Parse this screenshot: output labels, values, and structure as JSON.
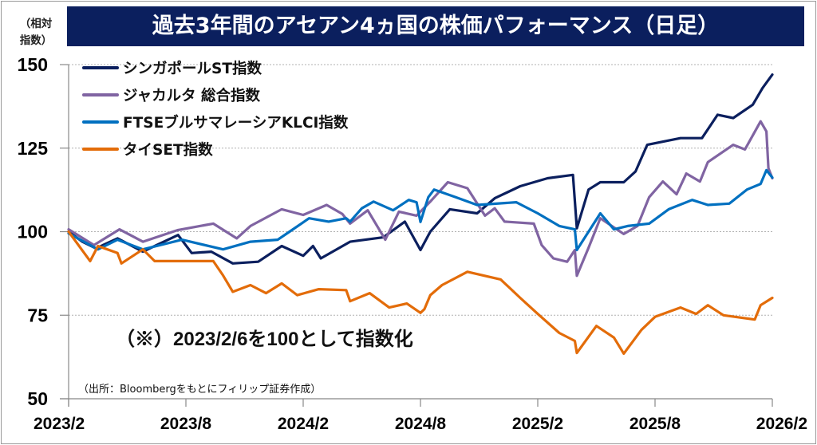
{
  "chart_data": {
    "type": "line",
    "title": "過去3年間のアセアン4ヵ国の株価パフォーマンス（日足）",
    "ylabel": "（相対指数）",
    "ylabel_lines": [
      "（相対",
      "指数）"
    ],
    "xlabel": "",
    "x_unit": "months since 2023/2",
    "xlim": [
      0,
      36
    ],
    "ylim": [
      50,
      150
    ],
    "yticks": [
      150,
      125,
      100,
      75,
      50
    ],
    "xticks": [
      {
        "x": 0,
        "label": "2023/2"
      },
      {
        "x": 6,
        "label": "2023/8"
      },
      {
        "x": 12,
        "label": "2024/2"
      },
      {
        "x": 18,
        "label": "2024/8"
      },
      {
        "x": 24,
        "label": "2025/2"
      },
      {
        "x": 30,
        "label": "2025/8"
      },
      {
        "x": 36,
        "label": "2026/2"
      }
    ],
    "grid": "horizontal dotted",
    "legend_position": "top-left",
    "note": "（※）2023/2/6を100として指数化",
    "source": "（出所：Bloombergをもとにフィリップ証券作成）",
    "series": [
      {
        "name": "シンガポールST指数",
        "color": "#0b1f5e",
        "points": [
          [
            0,
            100
          ],
          [
            0.7,
            97
          ],
          [
            1.4,
            95
          ],
          [
            2.5,
            98
          ],
          [
            3.8,
            94
          ],
          [
            4.5,
            96
          ],
          [
            5.6,
            99
          ],
          [
            6.3,
            93.6
          ],
          [
            7.3,
            94
          ],
          [
            8.4,
            90.5
          ],
          [
            9.7,
            91
          ],
          [
            10.9,
            95.7
          ],
          [
            12,
            92.8
          ],
          [
            12.5,
            95.7
          ],
          [
            12.9,
            92
          ],
          [
            14.4,
            97
          ],
          [
            16.1,
            98.3
          ],
          [
            17.2,
            103
          ],
          [
            18,
            94.5
          ],
          [
            18.5,
            100
          ],
          [
            19.5,
            106.7
          ],
          [
            20.9,
            105.5
          ],
          [
            21.8,
            110
          ],
          [
            23.1,
            113.6
          ],
          [
            24.5,
            116
          ],
          [
            25.8,
            117
          ],
          [
            26.0,
            101
          ],
          [
            26.6,
            112.6
          ],
          [
            27.2,
            114.8
          ],
          [
            28.4,
            114.8
          ],
          [
            29.0,
            118
          ],
          [
            29.6,
            126
          ],
          [
            31.3,
            128
          ],
          [
            32.4,
            128
          ],
          [
            33.2,
            135
          ],
          [
            34,
            134
          ],
          [
            35,
            138
          ],
          [
            35.5,
            143
          ],
          [
            36,
            147
          ]
        ]
      },
      {
        "name": "ジャカルタ 総合指数",
        "color": "#8064a2",
        "points": [
          [
            0,
            100.7
          ],
          [
            1.3,
            96
          ],
          [
            2.6,
            100.7
          ],
          [
            3.8,
            97
          ],
          [
            5.6,
            100.5
          ],
          [
            7.4,
            102.4
          ],
          [
            8.6,
            98
          ],
          [
            9.3,
            101.7
          ],
          [
            10.9,
            106.7
          ],
          [
            12,
            105
          ],
          [
            13.2,
            108
          ],
          [
            14,
            105.3
          ],
          [
            14.4,
            102.4
          ],
          [
            15.3,
            106.4
          ],
          [
            16.2,
            97.6
          ],
          [
            16.9,
            106
          ],
          [
            17.8,
            104.8
          ],
          [
            18.5,
            109
          ],
          [
            19.4,
            114.8
          ],
          [
            20.4,
            113
          ],
          [
            21.3,
            104.8
          ],
          [
            21.8,
            107
          ],
          [
            22.3,
            103
          ],
          [
            23.8,
            102.4
          ],
          [
            24.2,
            96
          ],
          [
            24.8,
            92
          ],
          [
            25.5,
            91
          ],
          [
            25.9,
            94.5
          ],
          [
            26,
            86.8
          ],
          [
            26.6,
            95.2
          ],
          [
            27.2,
            104
          ],
          [
            28.4,
            99.3
          ],
          [
            29.1,
            101.7
          ],
          [
            29.7,
            110.3
          ],
          [
            30.4,
            115
          ],
          [
            31.1,
            111.2
          ],
          [
            31.6,
            117.4
          ],
          [
            32.3,
            115
          ],
          [
            32.7,
            120.8
          ],
          [
            34,
            126
          ],
          [
            34.6,
            124.6
          ],
          [
            35.4,
            133
          ],
          [
            35.7,
            130
          ],
          [
            35.8,
            119
          ],
          [
            36,
            116
          ]
        ]
      },
      {
        "name": "FTSEブルサマレーシアKLCI指数",
        "color": "#0070c0",
        "points": [
          [
            0,
            99.5
          ],
          [
            1.5,
            94.7
          ],
          [
            2.5,
            97.6
          ],
          [
            3.8,
            94.7
          ],
          [
            5.8,
            97.6
          ],
          [
            7.9,
            94.7
          ],
          [
            9.3,
            97
          ],
          [
            10.7,
            97.6
          ],
          [
            11.3,
            100
          ],
          [
            12.3,
            104
          ],
          [
            13.3,
            103
          ],
          [
            14.2,
            104
          ],
          [
            14.4,
            103
          ],
          [
            15,
            107
          ],
          [
            15.6,
            109
          ],
          [
            16.6,
            106.4
          ],
          [
            17.4,
            109.5
          ],
          [
            17.8,
            108.8
          ],
          [
            18,
            102.9
          ],
          [
            18.4,
            110.3
          ],
          [
            18.7,
            112.6
          ],
          [
            19.8,
            110.3
          ],
          [
            20.9,
            108
          ],
          [
            22.9,
            108.8
          ],
          [
            24,
            105.5
          ],
          [
            25.1,
            101.7
          ],
          [
            25.9,
            100.7
          ],
          [
            26,
            94.5
          ],
          [
            27.2,
            105.5
          ],
          [
            27.9,
            100.7
          ],
          [
            28.6,
            101.7
          ],
          [
            29.7,
            102.4
          ],
          [
            30.7,
            106.7
          ],
          [
            31.9,
            109.5
          ],
          [
            32.7,
            108
          ],
          [
            33.8,
            108.4
          ],
          [
            34.7,
            112.6
          ],
          [
            35.4,
            114.3
          ],
          [
            35.7,
            118.4
          ],
          [
            36,
            116.2
          ]
        ]
      },
      {
        "name": "タイSET指数",
        "color": "#e36c09",
        "points": [
          [
            0,
            100
          ],
          [
            1.1,
            91.2
          ],
          [
            1.5,
            95.7
          ],
          [
            2.5,
            93.6
          ],
          [
            2.7,
            90.5
          ],
          [
            3.8,
            94.7
          ],
          [
            4.4,
            91.2
          ],
          [
            5.5,
            91.2
          ],
          [
            7.4,
            91.2
          ],
          [
            7.9,
            86.9
          ],
          [
            8.4,
            82
          ],
          [
            9.3,
            84
          ],
          [
            10.1,
            81.6
          ],
          [
            10.9,
            84.5
          ],
          [
            11.7,
            81
          ],
          [
            12.8,
            82.8
          ],
          [
            14.2,
            82.5
          ],
          [
            14.4,
            79.2
          ],
          [
            15.4,
            81.6
          ],
          [
            16.4,
            77.3
          ],
          [
            17.3,
            78.5
          ],
          [
            18,
            75.7
          ],
          [
            18.2,
            76.8
          ],
          [
            18.5,
            81
          ],
          [
            19.1,
            84
          ],
          [
            20.4,
            88
          ],
          [
            22.1,
            85.7
          ],
          [
            23.1,
            80.2
          ],
          [
            24,
            75.4
          ],
          [
            25.1,
            69.7
          ],
          [
            25.9,
            67.3
          ],
          [
            26,
            63.7
          ],
          [
            27,
            71.8
          ],
          [
            27.9,
            68.3
          ],
          [
            28.4,
            63.5
          ],
          [
            29.3,
            70.6
          ],
          [
            30,
            74.5
          ],
          [
            31.3,
            77.3
          ],
          [
            32.1,
            75.4
          ],
          [
            32.7,
            78
          ],
          [
            33.5,
            75
          ],
          [
            35.1,
            73.7
          ],
          [
            35.4,
            78
          ],
          [
            36,
            80.2
          ]
        ]
      }
    ]
  }
}
